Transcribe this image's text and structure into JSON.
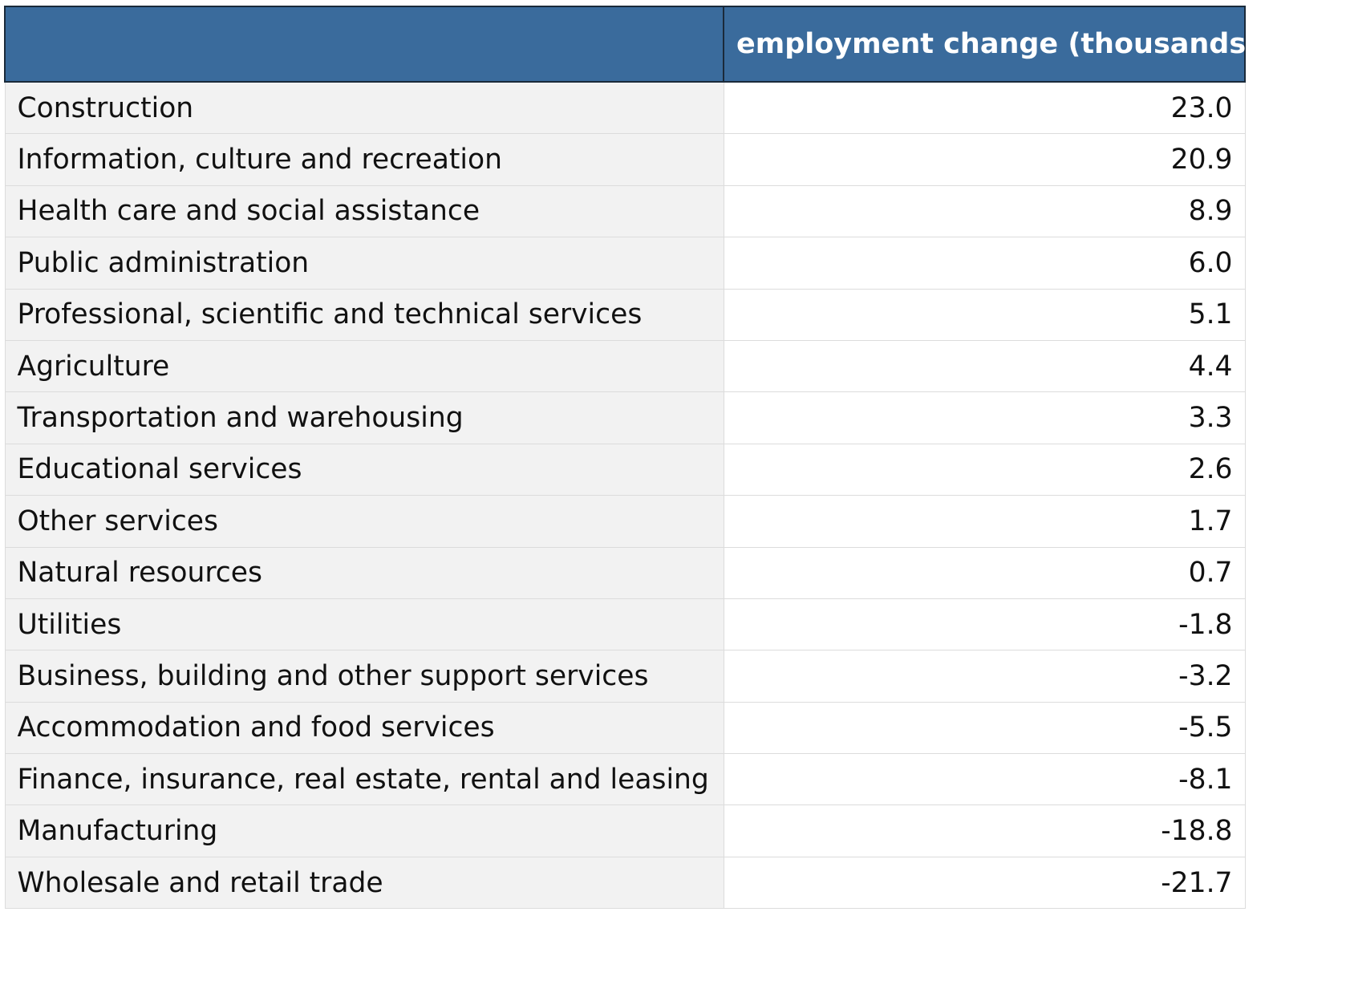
{
  "colors": {
    "header_bg": "#3a6b9c",
    "header_text": "#ffffff",
    "label_col_bg": "#f2f2f2",
    "value_col_bg": "#ffffff",
    "grid_line": "#dcdcdc"
  },
  "chart_data": {
    "type": "table",
    "columns": [
      "",
      "employment change (thousands)"
    ],
    "rows": [
      {
        "label": "Construction",
        "value": "23.0"
      },
      {
        "label": "Information, culture and recreation",
        "value": "20.9"
      },
      {
        "label": "Health care and social assistance",
        "value": "8.9"
      },
      {
        "label": "Public administration",
        "value": "6.0"
      },
      {
        "label": "Professional, scientific and technical services",
        "value": "5.1"
      },
      {
        "label": "Agriculture",
        "value": "4.4"
      },
      {
        "label": "Transportation and warehousing",
        "value": "3.3"
      },
      {
        "label": "Educational services",
        "value": "2.6"
      },
      {
        "label": "Other services",
        "value": "1.7"
      },
      {
        "label": "Natural resources",
        "value": "0.7"
      },
      {
        "label": "Utilities",
        "value": "-1.8"
      },
      {
        "label": "Business, building and other support services",
        "value": "-3.2"
      },
      {
        "label": "Accommodation and food services",
        "value": "-5.5"
      },
      {
        "label": "Finance, insurance, real estate, rental and leasing",
        "value": "-8.1"
      },
      {
        "label": "Manufacturing",
        "value": "-18.8"
      },
      {
        "label": "Wholesale and retail trade",
        "value": "-21.7"
      }
    ]
  }
}
